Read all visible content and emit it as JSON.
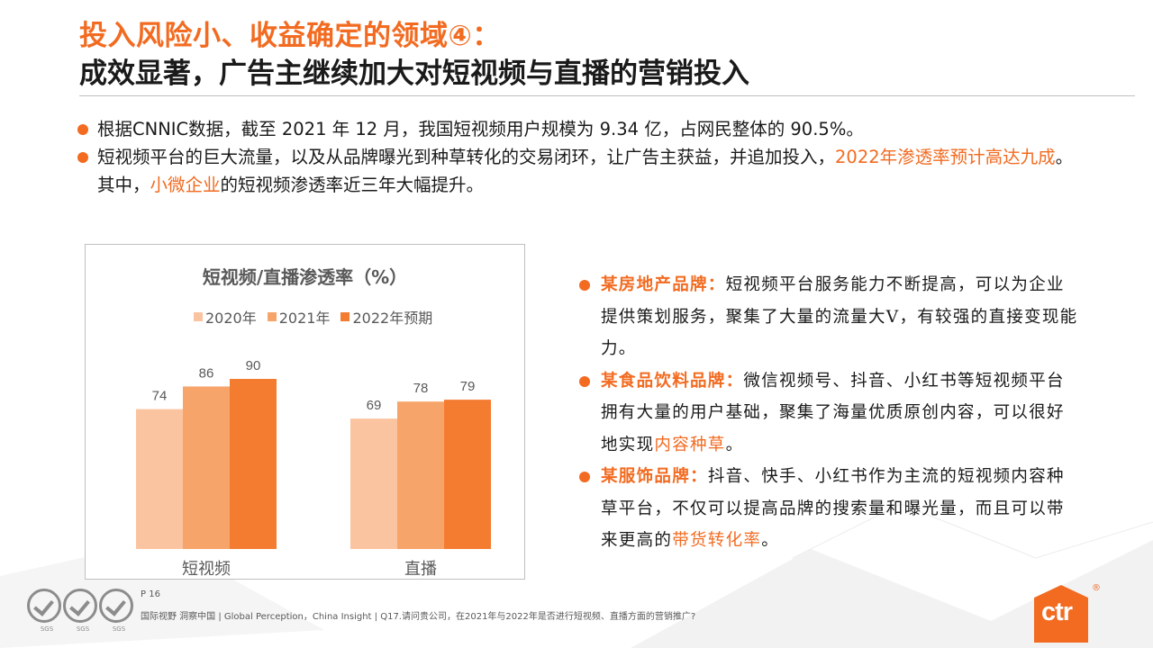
{
  "title": {
    "line1": "投入风险小、收益确定的领域④：",
    "line2": "成效显著，广告主继续加大对短视频与直播的营销投入"
  },
  "bullets": [
    {
      "text": "根据CNNIC数据，截至 2021 年 12 月，我国短视频用户规模为 9.34 亿，占网民整体的 90.5%。"
    },
    {
      "part1": "短视频平台的巨大流量，以及从品牌曝光到种草转化的交易闭环，让广告主获益，并追加投入，",
      "highlight1": "2022年渗透率预计高达九成",
      "part2": "。其中，",
      "highlight2": "小微企业",
      "part3": "的短视频渗透率近三年大幅提升。"
    }
  ],
  "chart_data": {
    "type": "bar",
    "title": "短视频/直播渗透率（%）",
    "categories": [
      "短视频",
      "直播"
    ],
    "series": [
      {
        "name": "2020年",
        "values": [
          74,
          69
        ],
        "color": "#fbc4a0"
      },
      {
        "name": "2021年",
        "values": [
          86,
          78
        ],
        "color": "#f7a46b"
      },
      {
        "name": "2022年预期",
        "values": [
          90,
          79
        ],
        "color": "#f47c30"
      }
    ],
    "ylim": [
      0,
      100
    ],
    "xlabel": "",
    "ylabel": "",
    "grid": false,
    "legend": "top"
  },
  "right_panel": [
    {
      "label": "某房地产品牌：",
      "text": "短视频平台服务能力不断提高，可以为企业提供策划服务，聚集了大量的流量大V，有较强的直接变现能力。"
    },
    {
      "label": "某食品饮料品牌：",
      "text": "微信视频号、抖音、小红书等短视频平台拥有大量的用户基础，聚集了海量优质原创内容，可以很好地实现",
      "highlight": "内容种草",
      "tail": "。"
    },
    {
      "label": "某服饰品牌：",
      "text": "抖音、快手、小红书作为主流的短视频内容种草平台，不仅可以提高品牌的搜索量和曝光量，而且可以带来更高的",
      "highlight": "带货转化率",
      "tail": "。"
    }
  ],
  "footer": {
    "page": "P 16",
    "note": "国际视野  洞察中国 | Global Perception，China Insight | Q17.请问贵公司，在2021年与2022年是否进行短视频、直播方面的营销推广?",
    "badge_label": "SGS"
  },
  "logo": {
    "text": "ctr",
    "reg": "®"
  },
  "colors": {
    "accent": "#f26b21"
  }
}
